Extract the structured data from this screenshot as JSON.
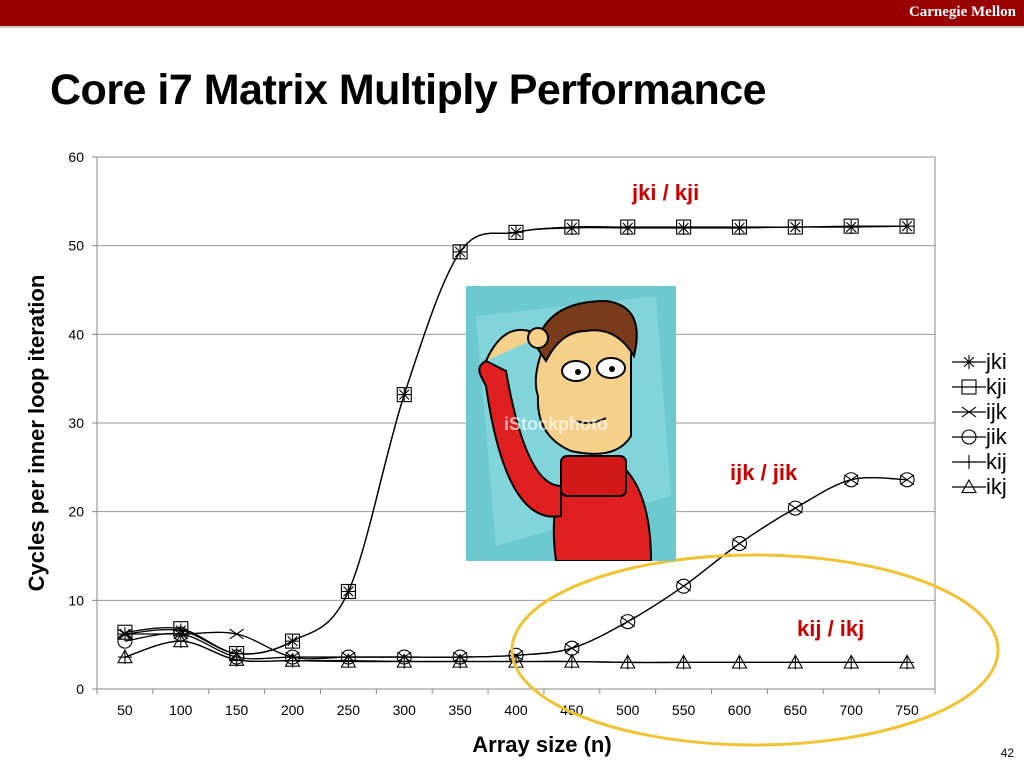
{
  "header": {
    "brand": "Carnegie Mellon"
  },
  "slide": {
    "title": "Core i7 Matrix Multiply Performance",
    "page_number": "42"
  },
  "annotations": {
    "jki_kji": "jki / kji",
    "ijk_jik": "ijk / jik",
    "kij_ikj": "kij / ikj"
  },
  "photo": {
    "watermark": "iStockphoto"
  },
  "colors": {
    "bar": "#990000",
    "annotation": "#cc0000",
    "ellipse": "#f1c232",
    "photo_bg": "#6cc9cf"
  },
  "chart_data": {
    "type": "line",
    "xlabel": "Array size (n)",
    "ylabel": "Cycles per inner loop iteration",
    "ylim": [
      0,
      60
    ],
    "yticks": [
      0,
      10,
      20,
      30,
      40,
      50,
      60
    ],
    "grid": true,
    "legend_position": "right",
    "categories": [
      50,
      100,
      150,
      200,
      250,
      300,
      350,
      400,
      450,
      500,
      550,
      600,
      650,
      700,
      750
    ],
    "series": [
      {
        "name": "jki",
        "marker": "asterisk",
        "values": [
          6.2,
          6.6,
          4.0,
          5.4,
          11.0,
          33.2,
          49.3,
          51.5,
          52.0,
          52.0,
          52.0,
          52.0,
          52.1,
          52.1,
          52.2
        ]
      },
      {
        "name": "kji",
        "marker": "square",
        "values": [
          6.4,
          6.8,
          4.0,
          5.4,
          11.0,
          33.2,
          49.3,
          51.5,
          52.1,
          52.1,
          52.1,
          52.1,
          52.1,
          52.2,
          52.2
        ]
      },
      {
        "name": "ijk",
        "marker": "x",
        "values": [
          6.2,
          6.2,
          6.2,
          3.6,
          3.6,
          3.6,
          3.6,
          3.8,
          4.6,
          7.6,
          11.6,
          16.4,
          20.4,
          23.6,
          23.6
        ]
      },
      {
        "name": "jik",
        "marker": "circle",
        "values": [
          5.4,
          6.2,
          3.6,
          3.6,
          3.6,
          3.6,
          3.6,
          3.8,
          4.6,
          7.6,
          11.6,
          16.4,
          20.4,
          23.6,
          23.6
        ]
      },
      {
        "name": "kij",
        "marker": "plus",
        "values": [
          3.6,
          5.4,
          3.3,
          3.2,
          3.2,
          3.1,
          3.1,
          3.1,
          3.1,
          3.0,
          3.0,
          3.0,
          3.0,
          3.0,
          3.0
        ]
      },
      {
        "name": "ikj",
        "marker": "triangle",
        "values": [
          3.6,
          5.4,
          3.3,
          3.2,
          3.1,
          3.1,
          3.1,
          3.1,
          3.1,
          3.0,
          3.0,
          3.0,
          3.0,
          3.0,
          3.0
        ]
      }
    ]
  }
}
